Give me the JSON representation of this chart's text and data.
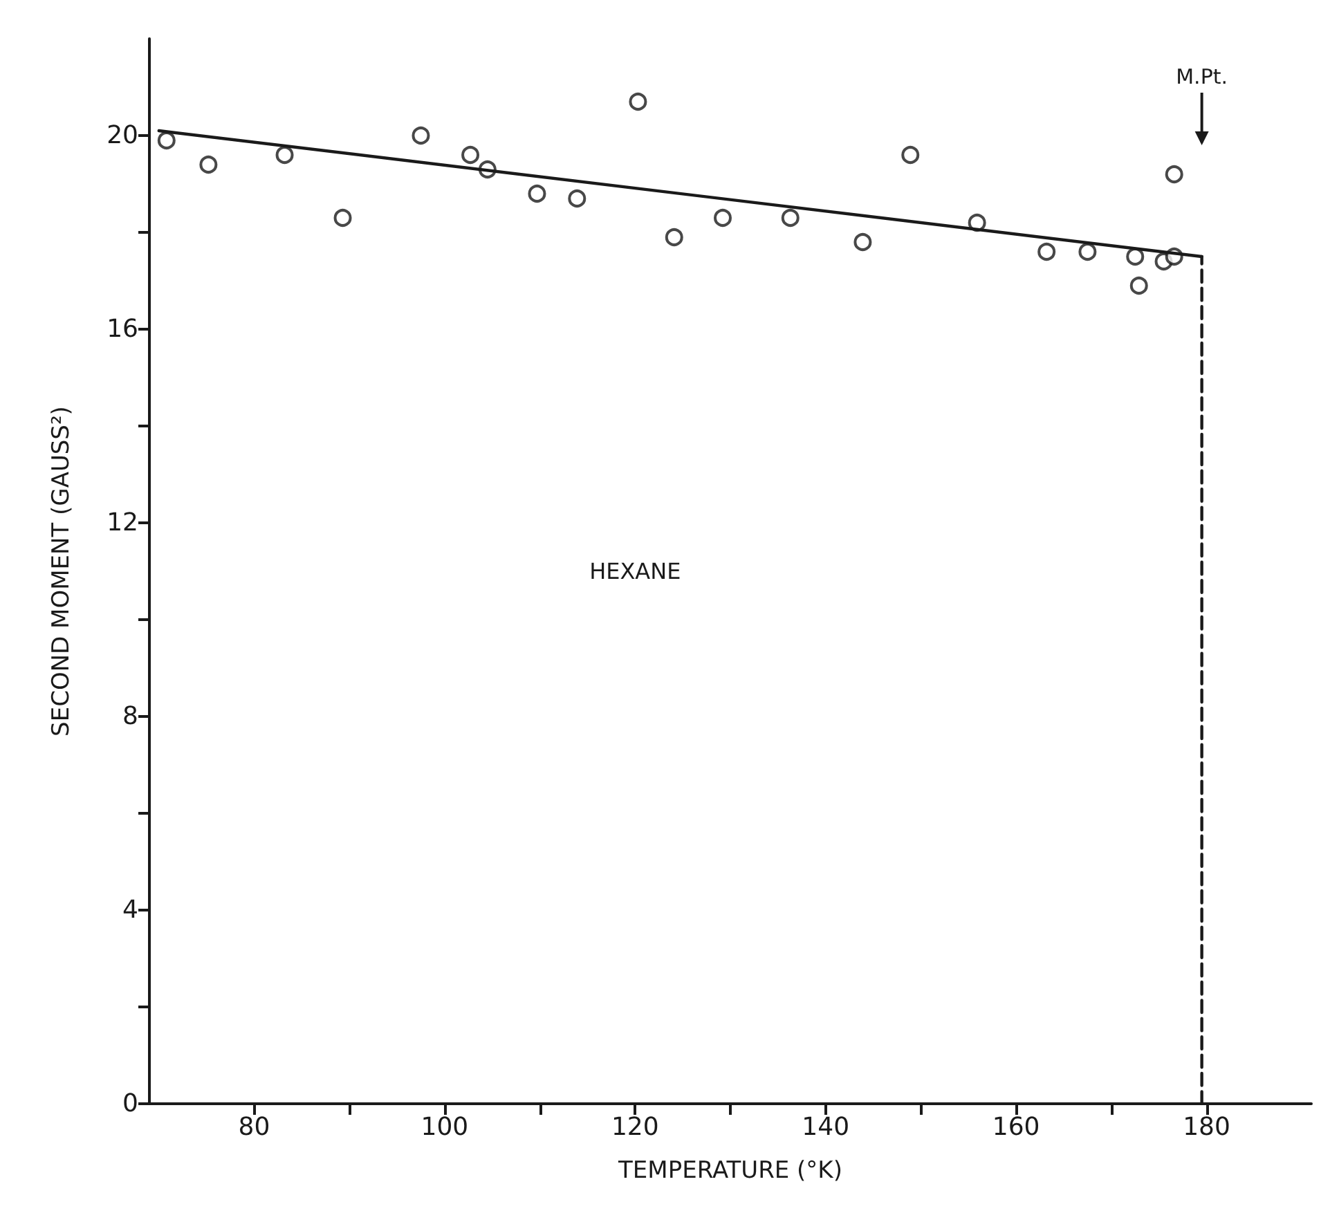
{
  "chart_data": {
    "type": "scatter",
    "xlabel": "TEMPERATURE (°K)",
    "ylabel": "SECOND MOMENT (GAUSS²)",
    "xlim": [
      69,
      191
    ],
    "ylim": [
      0,
      22
    ],
    "xticks": [
      80,
      {
        "value": 90,
        "label": null
      },
      100,
      {
        "value": 110,
        "label": null
      },
      120,
      {
        "value": 130,
        "label": null
      },
      140,
      {
        "value": 150,
        "label": null
      },
      160,
      {
        "value": 170,
        "label": null
      },
      180
    ],
    "yticks": [
      0,
      {
        "value": 2,
        "label": null
      },
      4,
      {
        "value": 6,
        "label": null
      },
      8,
      {
        "value": 10,
        "label": null
      },
      12,
      {
        "value": 14,
        "label": null
      },
      16,
      {
        "value": 18,
        "label": null
      },
      20
    ],
    "grid": false,
    "marker": "circle",
    "series": [
      {
        "color": "#1a1a1a",
        "x": [
          70.8,
          75.2,
          83.2,
          89.3,
          97.5,
          102.7,
          104.5,
          109.7,
          113.9,
          120.3,
          124.1,
          129.2,
          136.3,
          143.9,
          148.9,
          155.9,
          163.2,
          167.5,
          172.5,
          172.9,
          175.5,
          176.6,
          176.6
        ],
        "values": [
          19.9,
          19.4,
          19.6,
          18.3,
          20.0,
          19.6,
          19.3,
          18.8,
          18.7,
          20.7,
          17.9,
          18.3,
          18.3,
          17.8,
          19.6,
          18.2,
          17.6,
          17.6,
          17.5,
          16.9,
          17.4,
          17.5,
          19.2
        ]
      },
      {
        "type": "line",
        "color": "#1a1a1a",
        "marker": "none",
        "line_style": "solid",
        "x": [
          70,
          179.5
        ],
        "values": [
          20.1,
          17.5
        ]
      },
      {
        "type": "line",
        "color": "#1a1a1a",
        "marker": "none",
        "line_style": "dashed",
        "x": [
          179.5,
          179.5
        ],
        "values": [
          0,
          17.5
        ]
      }
    ],
    "annotations": [
      "M.Pt.",
      "HEXANE"
    ]
  }
}
